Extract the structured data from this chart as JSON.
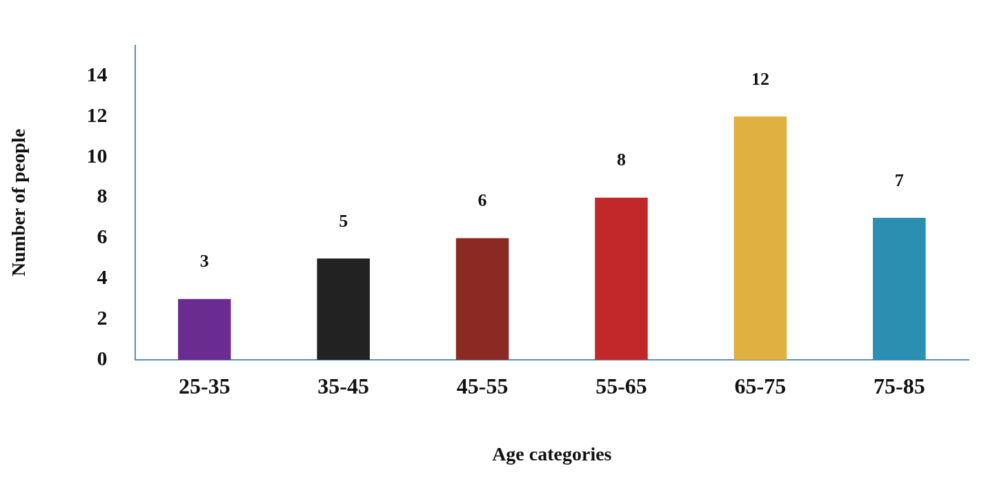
{
  "chart_data": {
    "type": "bar",
    "xlabel": "Age categories",
    "ylabel": "Number of people",
    "categories": [
      "25-35",
      "35-45",
      "45-55",
      "55-65",
      "65-75",
      "75-85"
    ],
    "values": [
      3,
      5,
      6,
      8,
      12,
      7
    ],
    "colors": [
      "#6a2c91",
      "#222222",
      "#8b2a22",
      "#c0282a",
      "#e0b040",
      "#2a8fb0"
    ],
    "ylim": [
      0,
      15.5
    ],
    "yticks": [
      0,
      2,
      4,
      6,
      8,
      10,
      12,
      14
    ],
    "grid": false,
    "legend": false,
    "data_labels": true
  }
}
